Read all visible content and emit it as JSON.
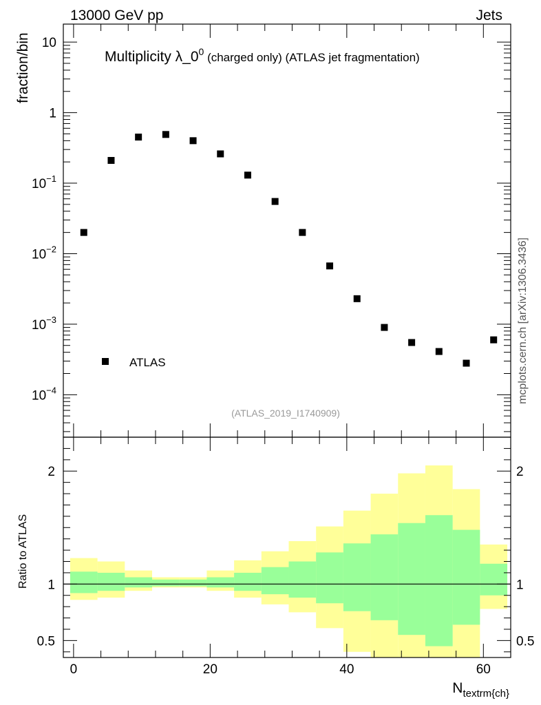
{
  "header": {
    "left": "13000 GeV pp",
    "right": "Jets",
    "side_label": "mcplots.cern.ch [arXiv:1306.3436]"
  },
  "chart_data": [
    {
      "type": "scatter",
      "panel": "main",
      "title_main": "Multiplicity λ_0",
      "title_sup": "0",
      "title_suffix": " (charged only) (ATLAS jet fragmentation)",
      "ylabel": "fraction/bin",
      "yscale": "log",
      "ylim": [
        2.5e-05,
        18
      ],
      "y_tick_labels": [
        {
          "value": 10,
          "base": "10",
          "exp": ""
        },
        {
          "value": 1,
          "base": "1",
          "exp": ""
        },
        {
          "value": 0.1,
          "base": "10",
          "exp": "−1"
        },
        {
          "value": 0.01,
          "base": "10",
          "exp": "−2"
        },
        {
          "value": 0.001,
          "base": "10",
          "exp": "−3"
        },
        {
          "value": 0.0001,
          "base": "10",
          "exp": "−4"
        }
      ],
      "legend": {
        "label": "ATLAS",
        "placement": "bottom-left"
      },
      "analysis_id": "(ATLAS_2019_I1740909)",
      "series": [
        {
          "name": "ATLAS",
          "x": [
            1.5,
            5.5,
            9.5,
            13.5,
            17.5,
            21.5,
            25.5,
            29.5,
            33.5,
            37.5,
            41.5,
            45.5,
            49.5,
            53.5,
            57.5,
            61.5
          ],
          "y": [
            0.02,
            0.21,
            0.45,
            0.49,
            0.4,
            0.26,
            0.13,
            0.055,
            0.02,
            0.0067,
            0.0023,
            0.0009,
            0.00055,
            0.00041,
            0.00028,
            0.0006
          ]
        }
      ]
    },
    {
      "type": "area",
      "panel": "ratio",
      "ylabel": "Ratio to ATLAS",
      "xlabel_base": "N",
      "xlabel_sub": "textrm{ch}",
      "xlim": [
        -1.5,
        64
      ],
      "ylim": [
        0.35,
        2.3
      ],
      "x_ticks": [
        0,
        20,
        40,
        60
      ],
      "y_ticks": [
        0.5,
        1,
        2
      ],
      "reference_line": 1,
      "bin_edges": [
        -0.5,
        3.5,
        7.5,
        11.5,
        15.5,
        19.5,
        23.5,
        27.5,
        31.5,
        35.5,
        39.5,
        43.5,
        47.5,
        51.5,
        55.5,
        59.5,
        63.5
      ],
      "bands": [
        {
          "name": "total uncertainty",
          "color": "#ffff99",
          "low": [
            0.86,
            0.88,
            0.94,
            0.97,
            0.97,
            0.94,
            0.88,
            0.82,
            0.75,
            0.61,
            0.4,
            0.3,
            0.3,
            0.3,
            0.3,
            0.78
          ],
          "high": [
            1.23,
            1.2,
            1.12,
            1.06,
            1.06,
            1.12,
            1.21,
            1.29,
            1.38,
            1.51,
            1.65,
            1.8,
            1.98,
            2.05,
            1.84,
            1.35
          ]
        },
        {
          "name": "statistical uncertainty",
          "color": "#99ff99",
          "low": [
            0.92,
            0.94,
            0.97,
            0.98,
            0.98,
            0.97,
            0.94,
            0.91,
            0.88,
            0.83,
            0.76,
            0.68,
            0.55,
            0.45,
            0.64,
            0.9
          ],
          "high": [
            1.11,
            1.1,
            1.06,
            1.04,
            1.04,
            1.06,
            1.1,
            1.15,
            1.2,
            1.28,
            1.36,
            1.44,
            1.54,
            1.61,
            1.48,
            1.18
          ]
        }
      ]
    }
  ]
}
